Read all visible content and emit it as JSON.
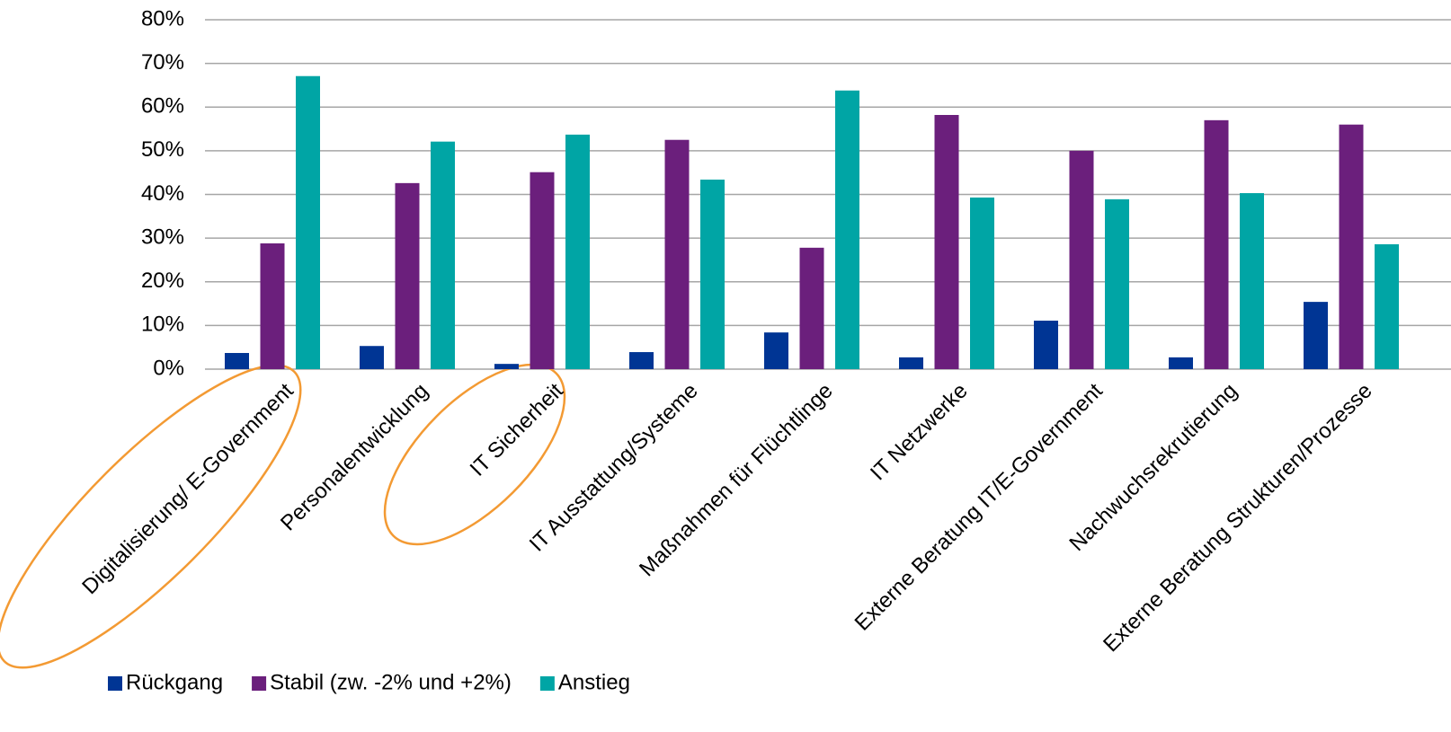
{
  "chart_data": {
    "type": "bar",
    "categories": [
      "Digitalisierung/ E-Government",
      "Personalentwicklung",
      "IT Sicherheit",
      "IT Ausstattung/Systeme",
      "Maßnahmen für Flüchtlinge",
      "IT Netzwerke",
      "Externe Beratung IT/E-Government",
      "Nachwuchsrekrutierung",
      "Externe Beratung Strukturen/Prozesse"
    ],
    "series": [
      {
        "name": "Rückgang",
        "color": "#003594",
        "values": [
          3.7,
          5.3,
          1.2,
          3.9,
          8.4,
          2.7,
          11.1,
          2.7,
          15.4
        ]
      },
      {
        "name": "Stabil (zw. -2% und +2%)",
        "color": "#6b1f7c",
        "values": [
          28.8,
          42.6,
          45.1,
          52.5,
          27.8,
          58.2,
          50,
          57,
          56
        ]
      },
      {
        "name": "Anstieg",
        "color": "#00a5a5",
        "values": [
          67.1,
          52.1,
          53.7,
          43.4,
          63.8,
          39.3,
          38.9,
          40.3,
          28.6
        ]
      }
    ],
    "ylim": [
      0,
      80
    ],
    "yticks": [
      {
        "value": 0,
        "label": "0%"
      },
      {
        "value": 10,
        "label": "10%"
      },
      {
        "value": 20,
        "label": "20%"
      },
      {
        "value": 30,
        "label": "30%"
      },
      {
        "value": 40,
        "label": "40%"
      },
      {
        "value": 50,
        "label": "50%"
      },
      {
        "value": 60,
        "label": "60%"
      },
      {
        "value": 70,
        "label": "70%"
      },
      {
        "value": 80,
        "label": "80%"
      }
    ],
    "grid": true,
    "legend": "bottom-left"
  }
}
